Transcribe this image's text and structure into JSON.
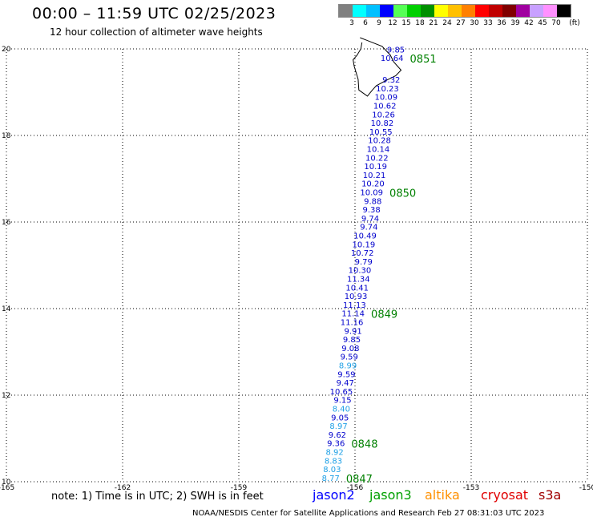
{
  "header": {
    "title": "00:00 – 11:59 UTC 02/25/2023",
    "subtitle": "12 hour collection of altimeter wave heights"
  },
  "legend": {
    "colors": [
      "#808080",
      "#00ffff",
      "#00c0ff",
      "#0000ff",
      "#55ff55",
      "#00d000",
      "#009000",
      "#ffff00",
      "#ffc000",
      "#ff8000",
      "#ff0000",
      "#c00000",
      "#800000",
      "#a000a0",
      "#c8a0ff",
      "#ff90ff",
      "#000000"
    ],
    "labels": [
      "3",
      "6",
      "9",
      "12",
      "15",
      "18",
      "21",
      "24",
      "27",
      "30",
      "33",
      "36",
      "39",
      "42",
      "45",
      "70"
    ],
    "unit": "(ft)"
  },
  "map": {
    "lon_ticks": [
      "-165",
      "-162",
      "-159",
      "-156",
      "-153",
      "-150"
    ],
    "lat_ticks": [
      "10",
      "12",
      "14",
      "16",
      "18",
      "20"
    ],
    "lon_range": [
      -165,
      -150
    ],
    "lat_range": [
      10,
      20
    ],
    "grid": "dotted",
    "track_color_dark": "#0000cc",
    "track_color_light": "#1ea0e6",
    "time_color": "#008000"
  },
  "chart_data": {
    "type": "scatter",
    "title": "00:00 – 11:59 UTC 02/25/2023",
    "x_range": [
      -165,
      -150
    ],
    "y_range": [
      10,
      20
    ],
    "wave_heights_ft": [
      {
        "lat": 10.02,
        "v": "8.77",
        "c": "light"
      },
      {
        "lat": 10.22,
        "v": "8.03",
        "c": "light"
      },
      {
        "lat": 10.42,
        "v": "8.83",
        "c": "light"
      },
      {
        "lat": 10.62,
        "v": "8.92",
        "c": "light"
      },
      {
        "lat": 10.82,
        "v": "9.36",
        "c": "dark"
      },
      {
        "lat": 11.02,
        "v": "9.62",
        "c": "dark"
      },
      {
        "lat": 11.22,
        "v": "8.97",
        "c": "light"
      },
      {
        "lat": 11.42,
        "v": "9.05",
        "c": "dark"
      },
      {
        "lat": 11.62,
        "v": "8.40",
        "c": "light"
      },
      {
        "lat": 11.82,
        "v": "9.15",
        "c": "dark"
      },
      {
        "lat": 12.02,
        "v": "10.65",
        "c": "dark"
      },
      {
        "lat": 12.22,
        "v": "9.47",
        "c": "dark"
      },
      {
        "lat": 12.42,
        "v": "9.59",
        "c": "dark"
      },
      {
        "lat": 12.62,
        "v": "8.99",
        "c": "light"
      },
      {
        "lat": 12.82,
        "v": "9.59",
        "c": "dark"
      },
      {
        "lat": 13.02,
        "v": "9.08",
        "c": "dark"
      },
      {
        "lat": 13.22,
        "v": "9.85",
        "c": "dark"
      },
      {
        "lat": 13.42,
        "v": "9.91",
        "c": "dark"
      },
      {
        "lat": 13.62,
        "v": "11.16",
        "c": "dark"
      },
      {
        "lat": 13.82,
        "v": "11.14",
        "c": "dark"
      },
      {
        "lat": 14.02,
        "v": "11.13",
        "c": "dark"
      },
      {
        "lat": 14.22,
        "v": "10.93",
        "c": "dark"
      },
      {
        "lat": 14.42,
        "v": "10.41",
        "c": "dark"
      },
      {
        "lat": 14.62,
        "v": "11.34",
        "c": "dark"
      },
      {
        "lat": 14.82,
        "v": "10.30",
        "c": "dark"
      },
      {
        "lat": 15.02,
        "v": "9.79",
        "c": "dark"
      },
      {
        "lat": 15.22,
        "v": "10.72",
        "c": "dark"
      },
      {
        "lat": 15.42,
        "v": "10.19",
        "c": "dark"
      },
      {
        "lat": 15.62,
        "v": "10.49",
        "c": "dark"
      },
      {
        "lat": 15.82,
        "v": "9.74",
        "c": "dark"
      },
      {
        "lat": 16.02,
        "v": "9.74",
        "c": "dark"
      },
      {
        "lat": 16.22,
        "v": "9.38",
        "c": "dark"
      },
      {
        "lat": 16.42,
        "v": "9.88",
        "c": "dark"
      },
      {
        "lat": 16.62,
        "v": "10.09",
        "c": "dark"
      },
      {
        "lat": 16.82,
        "v": "10.20",
        "c": "dark"
      },
      {
        "lat": 17.02,
        "v": "10.21",
        "c": "dark"
      },
      {
        "lat": 17.22,
        "v": "10.19",
        "c": "dark"
      },
      {
        "lat": 17.42,
        "v": "10.22",
        "c": "dark"
      },
      {
        "lat": 17.62,
        "v": "10.14",
        "c": "dark"
      },
      {
        "lat": 17.82,
        "v": "10.28",
        "c": "dark"
      },
      {
        "lat": 18.02,
        "v": "10.55",
        "c": "dark"
      },
      {
        "lat": 18.22,
        "v": "10.82",
        "c": "dark"
      },
      {
        "lat": 18.42,
        "v": "10.26",
        "c": "dark"
      },
      {
        "lat": 18.62,
        "v": "10.62",
        "c": "dark"
      },
      {
        "lat": 18.82,
        "v": "10.09",
        "c": "dark"
      },
      {
        "lat": 19.02,
        "v": "10.23",
        "c": "dark"
      },
      {
        "lat": 19.22,
        "v": "9.32",
        "c": "dark"
      },
      {
        "lat": 19.72,
        "v": "10.64",
        "c": "dark"
      },
      {
        "lat": 19.92,
        "v": "9.85",
        "c": "dark"
      }
    ],
    "pass_times": [
      {
        "lat": 10.02,
        "label": "0847"
      },
      {
        "lat": 10.82,
        "label": "0848"
      },
      {
        "lat": 13.82,
        "label": "0849"
      },
      {
        "lat": 16.62,
        "label": "0850"
      },
      {
        "lat": 19.72,
        "label": "0851"
      }
    ]
  },
  "note": "note:  1) Time is in UTC;  2) SWH is in feet",
  "satellites": [
    {
      "name": "jason2",
      "color": "#0000ff"
    },
    {
      "name": "jason3",
      "color": "#00a000"
    },
    {
      "name": "altika",
      "color": "#ff9000"
    },
    {
      "name": "cryosat",
      "color": "#e00000"
    },
    {
      "name": "s3a",
      "color": "#a00000"
    }
  ],
  "footer": "NOAA/NESDIS Center for Satellite Applications and Research    Feb 27 08:31:03 UTC 2023"
}
